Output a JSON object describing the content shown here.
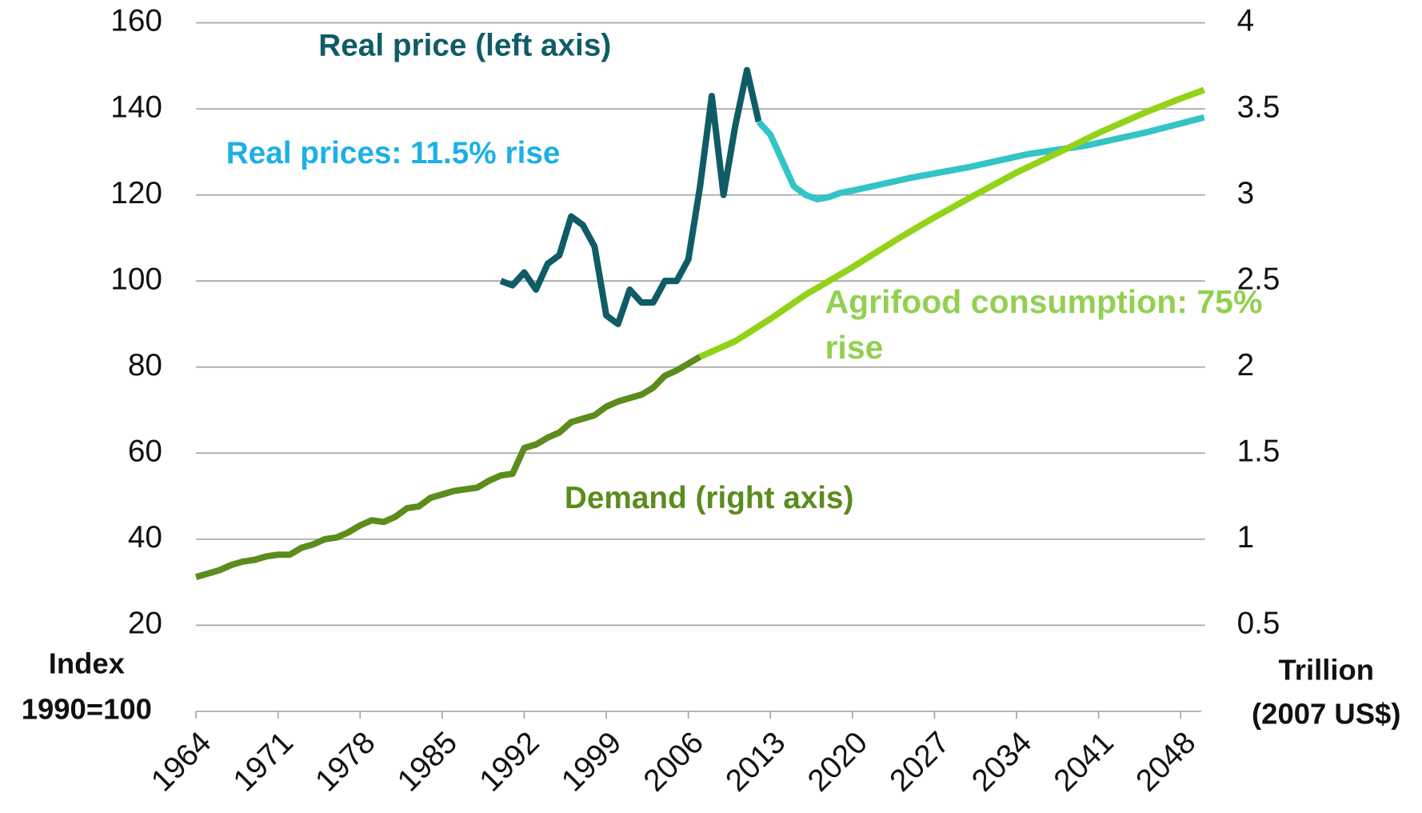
{
  "chart_data": {
    "type": "line",
    "ylabel": [
      "Index",
      "1990=100"
    ],
    "y2label": [
      "Trillion",
      "(2007 US$)"
    ],
    "xlim": [
      1964,
      2050
    ],
    "xticks": [
      1964,
      1971,
      1978,
      1985,
      1992,
      1999,
      2006,
      2013,
      2020,
      2027,
      2034,
      2041,
      2048
    ],
    "ylim": [
      0,
      160
    ],
    "yticks": [
      20,
      40,
      60,
      80,
      100,
      120,
      140,
      160
    ],
    "y2lim": [
      0,
      4
    ],
    "y2ticks": [
      0.5,
      1,
      1.5,
      2,
      2.5,
      3,
      3.5,
      4
    ],
    "grid": true,
    "series": [
      {
        "name": "Real price (left axis)",
        "color": "#0f5c66",
        "axis": "y",
        "x": [
          1990,
          1991,
          1992,
          1993,
          1994,
          1995,
          1996,
          1997,
          1998,
          1999,
          2000,
          2001,
          2002,
          2003,
          2004,
          2005,
          2006,
          2007,
          2008,
          2009,
          2010,
          2011,
          2012
        ],
        "values": [
          100,
          99,
          102,
          98,
          104,
          106,
          115,
          113,
          108,
          92,
          90,
          98,
          95,
          95,
          100,
          100,
          105,
          122,
          143,
          120,
          136,
          149,
          137
        ]
      },
      {
        "name": "Real prices: 11.5% rise",
        "color": "#33c4c6",
        "axis": "y",
        "x": [
          2012,
          2013,
          2014,
          2015,
          2016,
          2017,
          2018,
          2019,
          2020,
          2025,
          2030,
          2035,
          2040,
          2045,
          2050
        ],
        "values": [
          137,
          134,
          128,
          122,
          120,
          119,
          119.5,
          120.5,
          121,
          124,
          126.5,
          129.5,
          131.5,
          134.5,
          138
        ]
      },
      {
        "name": "Demand (right axis)",
        "color": "#5b8c1c",
        "axis": "y2",
        "x": [
          1964,
          1965,
          1966,
          1967,
          1968,
          1969,
          1970,
          1971,
          1972,
          1973,
          1974,
          1975,
          1976,
          1977,
          1978,
          1979,
          1980,
          1981,
          1982,
          1983,
          1984,
          1985,
          1986,
          1987,
          1988,
          1989,
          1990,
          1991,
          1992,
          1993,
          1994,
          1995,
          1996,
          1997,
          1998,
          1999,
          2000,
          2001,
          2002,
          2003,
          2004,
          2005,
          2006,
          2007
        ],
        "values": [
          0.78,
          0.8,
          0.82,
          0.85,
          0.87,
          0.88,
          0.9,
          0.91,
          0.91,
          0.95,
          0.97,
          1.0,
          1.01,
          1.04,
          1.08,
          1.11,
          1.1,
          1.13,
          1.18,
          1.19,
          1.24,
          1.26,
          1.28,
          1.29,
          1.3,
          1.34,
          1.37,
          1.38,
          1.53,
          1.55,
          1.59,
          1.62,
          1.68,
          1.7,
          1.72,
          1.77,
          1.8,
          1.82,
          1.84,
          1.88,
          1.95,
          1.98,
          2.02,
          2.06
        ]
      },
      {
        "name": "Agrifood consumption: 75% rise",
        "color": "#92d318",
        "axis": "y2",
        "x": [
          2007,
          2010,
          2013,
          2016,
          2020,
          2024,
          2027,
          2031,
          2034,
          2038,
          2041,
          2045,
          2048,
          2050
        ],
        "values": [
          2.06,
          2.15,
          2.28,
          2.42,
          2.58,
          2.75,
          2.87,
          3.02,
          3.13,
          3.26,
          3.36,
          3.48,
          3.56,
          3.61
        ]
      }
    ]
  }
}
